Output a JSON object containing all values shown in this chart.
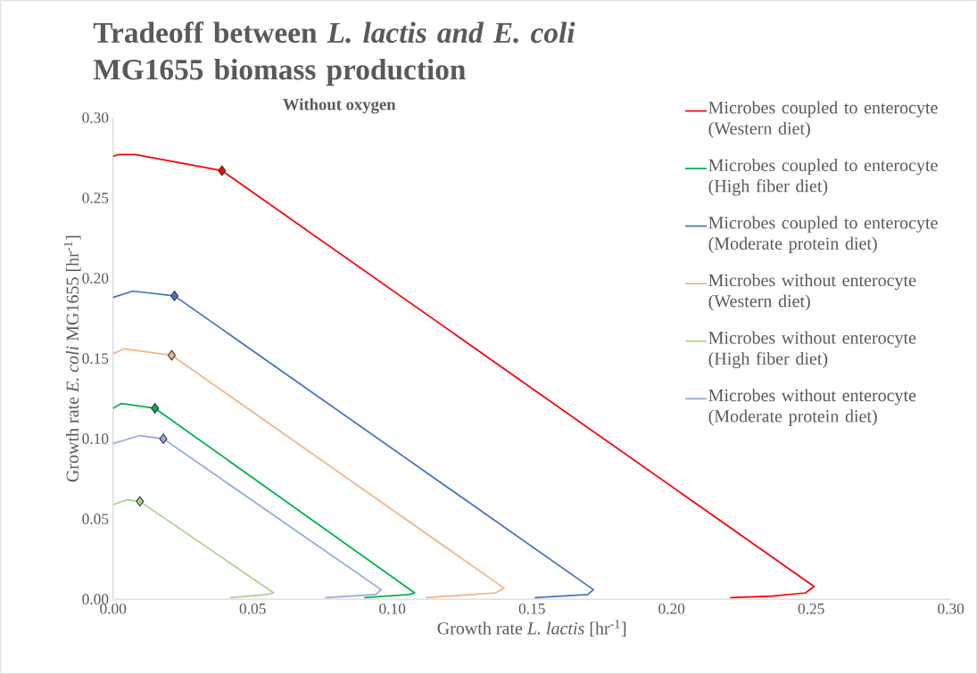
{
  "chart_data": {
    "type": "line",
    "title": "Tradeoff between *L. lactis and E. coli* MG1655 biomass production",
    "subtitle": "Without oxygen",
    "xlabel": "Growth rate *L. lactis* [hr$^{-1}$]",
    "ylabel": "Growth rate *E. coli* MG1655 [hr$^{-1}$]",
    "xlim": [
      0,
      0.3
    ],
    "xticks": [
      {
        "value": 0,
        "label": "0.00"
      },
      0.05,
      {
        "value": 0.1,
        "label": "0.10"
      },
      0.15,
      {
        "value": 0.2,
        "label": "0.20"
      },
      0.25,
      {
        "value": 0.3,
        "label": "0.30"
      }
    ],
    "ylim": [
      0,
      0.3
    ],
    "yticks": [
      {
        "value": 0,
        "label": "0.00"
      },
      0.05,
      {
        "value": 0.1,
        "label": "0.10"
      },
      0.15,
      {
        "value": 0.2,
        "label": "0.20"
      },
      0.25,
      {
        "value": 0.3,
        "label": "0.30"
      }
    ],
    "legend": "top right",
    "series": [
      {
        "name": "Microbes coupled to enterocyte (Western diet)",
        "color": "#ff0000",
        "x": [
          0,
          0.002,
          0.008,
          0.039,
          0.251,
          0.248,
          0.236,
          0.221
        ],
        "values": [
          0.276,
          0.277,
          0.277,
          0.267,
          0.008,
          0.004,
          0.002,
          0.001
        ]
      },
      {
        "name": "Microbes coupled to enterocyte (High fiber diet)",
        "color": "#00b050",
        "x": [
          0,
          0.003,
          0.015,
          0.108,
          0.106,
          0.09
        ],
        "values": [
          0.119,
          0.122,
          0.119,
          0.004,
          0.003,
          0.001
        ]
      },
      {
        "name": "Microbes coupled to enterocyte (Moderate protein diet)",
        "color": "#4472c4",
        "x": [
          0,
          0.007,
          0.022,
          0.172,
          0.17,
          0.151
        ],
        "values": [
          0.188,
          0.192,
          0.189,
          0.006,
          0.003,
          0.001
        ]
      },
      {
        "name": "Microbes without enterocyte (Western diet)",
        "color": "#f4b183",
        "x": [
          0,
          0.004,
          0.021,
          0.14,
          0.137,
          0.112
        ],
        "values": [
          0.153,
          0.156,
          0.152,
          0.007,
          0.004,
          0.001
        ]
      },
      {
        "name": "Microbes without enterocyte (High fiber diet)",
        "color": "#a9d18e",
        "x": [
          0,
          0.005,
          0.0096,
          0.0575,
          0.055,
          0.042
        ],
        "values": [
          0.059,
          0.062,
          0.061,
          0.004,
          0.003,
          0.001
        ]
      },
      {
        "name": "Microbes without enterocyte (Moderate protein diet)",
        "color": "#8faadc",
        "x": [
          0,
          0.0096,
          0.018,
          0.096,
          0.094,
          0.076
        ],
        "values": [
          0.097,
          0.102,
          0.1,
          0.006,
          0.003,
          0.001
        ]
      },
      {
        "type": "scatter",
        "marker": "diamond",
        "color": "#ff0000",
        "x": [
          0.039
        ],
        "values": [
          0.267
        ]
      },
      {
        "type": "scatter",
        "marker": "diamond",
        "color": "#00b050",
        "x": [
          0.015
        ],
        "values": [
          0.119
        ]
      },
      {
        "type": "scatter",
        "marker": "diamond",
        "color": "#4472c4",
        "x": [
          0.022
        ],
        "values": [
          0.189
        ]
      },
      {
        "type": "scatter",
        "marker": "diamond",
        "color": "#f4b183",
        "x": [
          0.021
        ],
        "values": [
          0.152
        ]
      },
      {
        "type": "scatter",
        "marker": "diamond",
        "color": "#a9d18e",
        "x": [
          0.0096
        ],
        "values": [
          0.061
        ]
      },
      {
        "type": "scatter",
        "marker": "diamond",
        "color": "#8faadc",
        "x": [
          0.018
        ],
        "values": [
          0.1
        ]
      }
    ]
  }
}
